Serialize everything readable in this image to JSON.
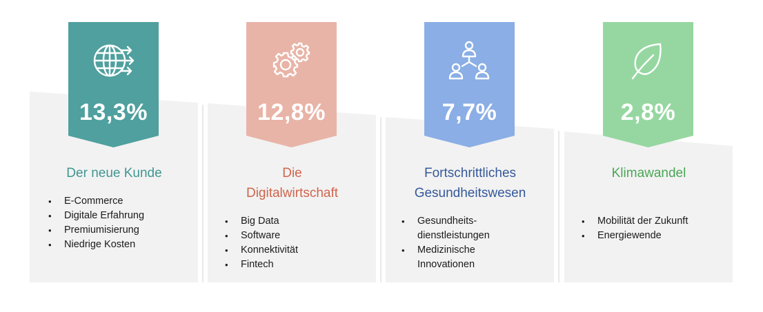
{
  "cards": [
    {
      "id": "kunde",
      "percent": "13,3%",
      "title_lines": [
        "Der neue Kunde"
      ],
      "color": "#4fa09e",
      "title_color": "#3f9691",
      "icon": "globe-arrows-icon",
      "items": [
        "E-Commerce",
        "Digitale Erfahrung",
        "Premiumisierung",
        "Niedrige Kosten"
      ]
    },
    {
      "id": "digital",
      "percent": "12,8%",
      "title_lines": [
        "Die",
        "Digitalwirtschaft"
      ],
      "color": "#e8b4a7",
      "title_color": "#d0644c",
      "icon": "gears-icon",
      "items": [
        "Big Data",
        "Software",
        "Konnektivität",
        "Fintech"
      ]
    },
    {
      "id": "gesundheit",
      "percent": "7,7%",
      "title_lines": [
        "Fortschrittliches",
        "Gesundheitswesen"
      ],
      "color": "#8aaee5",
      "title_color": "#34589a",
      "icon": "people-network-icon",
      "items": [
        "Gesundheits-\ndienstleistungen",
        "Medizinische\nInnovationen"
      ]
    },
    {
      "id": "klima",
      "percent": "2,8%",
      "title_lines": [
        "Klimawandel"
      ],
      "color": "#96d7a1",
      "title_color": "#4aa655",
      "icon": "leaf-icon",
      "items": [
        "Mobilität der Zukunft",
        "Energiewende"
      ]
    }
  ],
  "colors": {
    "panel": "#f2f2f2",
    "divider": "#d0d0d0"
  }
}
